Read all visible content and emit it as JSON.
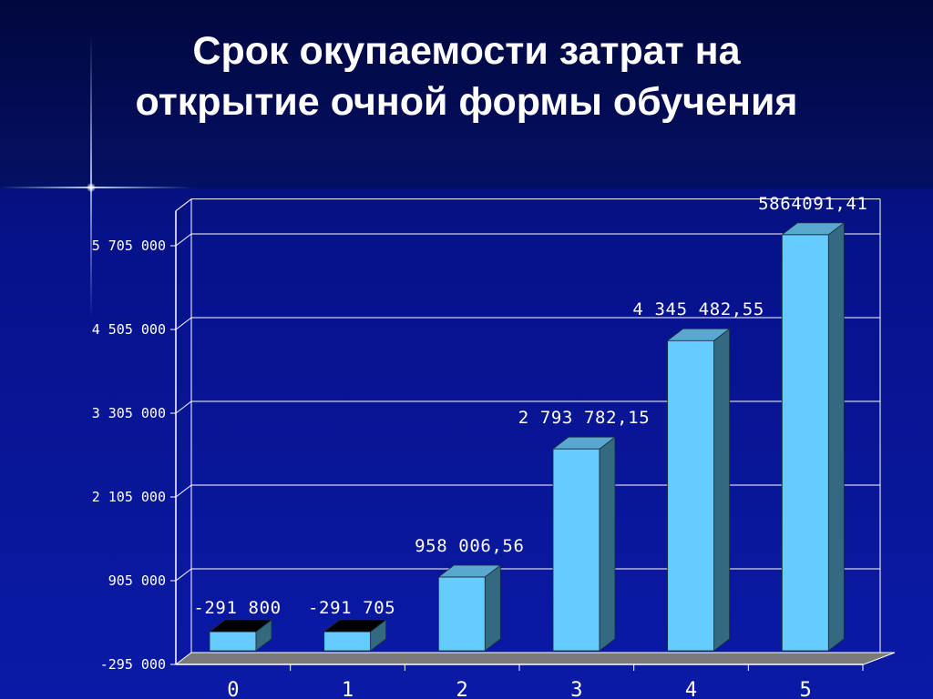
{
  "slide": {
    "title_line1": "Срок окупаемости затрат на",
    "title_line2": "открытие очной формы обучения"
  },
  "chart_data": {
    "type": "bar",
    "title": "Срок окупаемости затрат на открытие очной формы обучения",
    "categories": [
      "0",
      "1",
      "2",
      "3",
      "4",
      "5"
    ],
    "values": [
      -291800,
      -291705,
      958006.56,
      2793782.15,
      4345482.55,
      5864091.41
    ],
    "data_labels": [
      "-291 800",
      "-291 705",
      "958 006,56",
      "2 793 782,15",
      "4 345 482,55",
      "5864091,41"
    ],
    "y_ticks": [
      -295000,
      905000,
      2105000,
      3305000,
      4505000,
      5705000
    ],
    "y_tick_labels": [
      "-295 000",
      "905 000",
      "2 105 000",
      "3 305 000",
      "4 505 000",
      "5 705 000"
    ],
    "ylim": [
      -295000,
      6205000
    ],
    "grid": true,
    "legend": "none",
    "colors": {
      "bar_front": "#66ccff",
      "bar_top": "#5aa8d0",
      "bar_side": "#336a80",
      "bar_top_negative": "#000000",
      "floor": "#7a7a7a",
      "axis": "#ffffff",
      "grid": "#ffffff",
      "text": "#ffffff"
    }
  }
}
